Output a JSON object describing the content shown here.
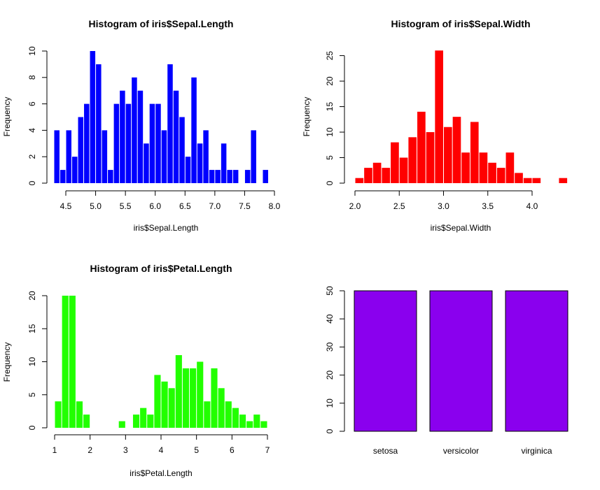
{
  "chart_data": [
    {
      "type": "bar",
      "title": "Histogram of iris$Sepal.Length",
      "xlabel": "iris$Sepal.Length",
      "ylabel": "Frequency",
      "color": "#0000ff",
      "bin_width": 0.1,
      "xlim": [
        4.3,
        7.9
      ],
      "ylim": [
        0,
        10
      ],
      "x_ticks": [
        "4.5",
        "5.0",
        "5.5",
        "6.0",
        "6.5",
        "7.0",
        "7.5",
        "8.0"
      ],
      "y_ticks": [
        "0",
        "2",
        "4",
        "6",
        "8",
        "10"
      ],
      "bins": [
        {
          "start": 4.3,
          "count": 4
        },
        {
          "start": 4.4,
          "count": 1
        },
        {
          "start": 4.5,
          "count": 4
        },
        {
          "start": 4.6,
          "count": 2
        },
        {
          "start": 4.7,
          "count": 5
        },
        {
          "start": 4.8,
          "count": 6
        },
        {
          "start": 4.9,
          "count": 10
        },
        {
          "start": 5.0,
          "count": 9
        },
        {
          "start": 5.1,
          "count": 4
        },
        {
          "start": 5.2,
          "count": 1
        },
        {
          "start": 5.3,
          "count": 6
        },
        {
          "start": 5.4,
          "count": 7
        },
        {
          "start": 5.5,
          "count": 6
        },
        {
          "start": 5.6,
          "count": 8
        },
        {
          "start": 5.7,
          "count": 7
        },
        {
          "start": 5.8,
          "count": 3
        },
        {
          "start": 5.9,
          "count": 6
        },
        {
          "start": 6.0,
          "count": 6
        },
        {
          "start": 6.1,
          "count": 4
        },
        {
          "start": 6.2,
          "count": 9
        },
        {
          "start": 6.3,
          "count": 7
        },
        {
          "start": 6.4,
          "count": 5
        },
        {
          "start": 6.5,
          "count": 2
        },
        {
          "start": 6.6,
          "count": 8
        },
        {
          "start": 6.7,
          "count": 3
        },
        {
          "start": 6.8,
          "count": 4
        },
        {
          "start": 6.9,
          "count": 1
        },
        {
          "start": 7.0,
          "count": 1
        },
        {
          "start": 7.1,
          "count": 3
        },
        {
          "start": 7.2,
          "count": 1
        },
        {
          "start": 7.3,
          "count": 1
        },
        {
          "start": 7.4,
          "count": 0
        },
        {
          "start": 7.5,
          "count": 1
        },
        {
          "start": 7.6,
          "count": 4
        },
        {
          "start": 7.7,
          "count": 0
        },
        {
          "start": 7.8,
          "count": 1
        }
      ]
    },
    {
      "type": "bar",
      "title": "Histogram of iris$Sepal.Width",
      "xlabel": "iris$Sepal.Width",
      "ylabel": "Frequency",
      "color": "#ff0000",
      "bin_width": 0.1,
      "xlim": [
        2.0,
        4.4
      ],
      "ylim": [
        0,
        26
      ],
      "x_ticks": [
        "2.0",
        "2.5",
        "3.0",
        "3.5",
        "4.0"
      ],
      "y_ticks": [
        "0",
        "5",
        "10",
        "15",
        "20",
        "25"
      ],
      "bins": [
        {
          "start": 2.0,
          "count": 1
        },
        {
          "start": 2.1,
          "count": 3
        },
        {
          "start": 2.2,
          "count": 4
        },
        {
          "start": 2.3,
          "count": 3
        },
        {
          "start": 2.4,
          "count": 8
        },
        {
          "start": 2.5,
          "count": 5
        },
        {
          "start": 2.6,
          "count": 9
        },
        {
          "start": 2.7,
          "count": 14
        },
        {
          "start": 2.8,
          "count": 10
        },
        {
          "start": 2.9,
          "count": 26
        },
        {
          "start": 3.0,
          "count": 11
        },
        {
          "start": 3.1,
          "count": 13
        },
        {
          "start": 3.2,
          "count": 6
        },
        {
          "start": 3.3,
          "count": 12
        },
        {
          "start": 3.4,
          "count": 6
        },
        {
          "start": 3.5,
          "count": 4
        },
        {
          "start": 3.6,
          "count": 3
        },
        {
          "start": 3.7,
          "count": 6
        },
        {
          "start": 3.8,
          "count": 2
        },
        {
          "start": 3.9,
          "count": 1
        },
        {
          "start": 4.0,
          "count": 1
        },
        {
          "start": 4.1,
          "count": 0
        },
        {
          "start": 4.2,
          "count": 0
        },
        {
          "start": 4.3,
          "count": 1
        }
      ]
    },
    {
      "type": "bar",
      "title": "Histogram of iris$Petal.Length",
      "xlabel": "iris$Petal.Length",
      "ylabel": "Frequency",
      "color": "#22ff00",
      "bin_width": 0.2,
      "xlim": [
        1,
        7
      ],
      "ylim": [
        0,
        20
      ],
      "x_ticks": [
        "1",
        "2",
        "3",
        "4",
        "5",
        "6",
        "7"
      ],
      "y_ticks": [
        "0",
        "5",
        "10",
        "15",
        "20"
      ],
      "bins": [
        {
          "start": 1.0,
          "count": 4
        },
        {
          "start": 1.2,
          "count": 20
        },
        {
          "start": 1.4,
          "count": 20
        },
        {
          "start": 1.6,
          "count": 4
        },
        {
          "start": 1.8,
          "count": 2
        },
        {
          "start": 2.0,
          "count": 0
        },
        {
          "start": 2.2,
          "count": 0
        },
        {
          "start": 2.4,
          "count": 0
        },
        {
          "start": 2.6,
          "count": 0
        },
        {
          "start": 2.8,
          "count": 1
        },
        {
          "start": 3.0,
          "count": 0
        },
        {
          "start": 3.2,
          "count": 2
        },
        {
          "start": 3.4,
          "count": 3
        },
        {
          "start": 3.6,
          "count": 2
        },
        {
          "start": 3.8,
          "count": 8
        },
        {
          "start": 4.0,
          "count": 7
        },
        {
          "start": 4.2,
          "count": 6
        },
        {
          "start": 4.4,
          "count": 11
        },
        {
          "start": 4.6,
          "count": 9
        },
        {
          "start": 4.8,
          "count": 9
        },
        {
          "start": 5.0,
          "count": 10
        },
        {
          "start": 5.2,
          "count": 4
        },
        {
          "start": 5.4,
          "count": 9
        },
        {
          "start": 5.6,
          "count": 6
        },
        {
          "start": 5.8,
          "count": 4
        },
        {
          "start": 6.0,
          "count": 3
        },
        {
          "start": 6.2,
          "count": 2
        },
        {
          "start": 6.4,
          "count": 1
        },
        {
          "start": 6.6,
          "count": 2
        },
        {
          "start": 6.8,
          "count": 1
        }
      ]
    },
    {
      "type": "bar",
      "title": "",
      "xlabel": "",
      "ylabel": "",
      "color": "#8a00ee",
      "categories": [
        "setosa",
        "versicolor",
        "virginica"
      ],
      "values": [
        50,
        50,
        50
      ],
      "ylim": [
        0,
        50
      ],
      "y_ticks": [
        "0",
        "10",
        "20",
        "30",
        "40",
        "50"
      ]
    }
  ]
}
